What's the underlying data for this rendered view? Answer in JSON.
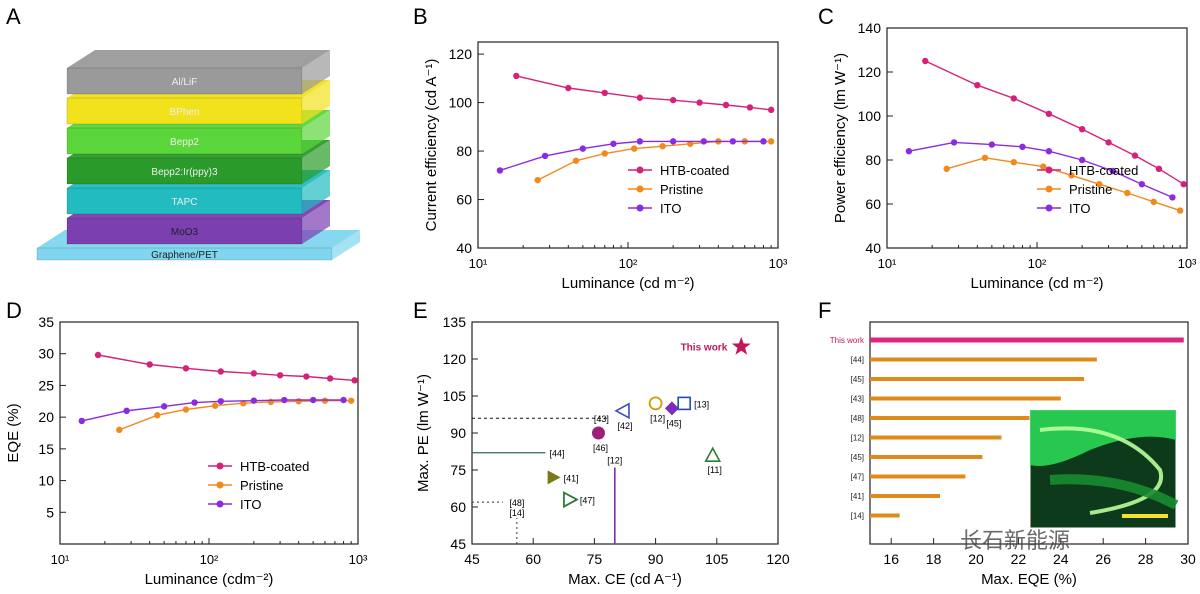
{
  "panels": {
    "A": {
      "label": "A",
      "layers": [
        "Al/LiF",
        "BPhen",
        "Bepp2",
        "Bepp2:Ir(ppy)3",
        "TAPC",
        "MoO3",
        "Graphene/PET"
      ],
      "colors": [
        "#9a9a9a",
        "#f2e21c",
        "#5bd63a",
        "#2a9b2a",
        "#22bcc0",
        "#7b3fb0",
        "#7fd6ee"
      ]
    },
    "B": {
      "label": "B"
    },
    "C": {
      "label": "C"
    },
    "D": {
      "label": "D"
    },
    "E": {
      "label": "E"
    },
    "F": {
      "label": "F"
    }
  },
  "watermark": "长石新能源",
  "colors": {
    "htb": "#d6217a",
    "pristine": "#f08a1c",
    "ito": "#8a2be2"
  },
  "chart_data": [
    {
      "id": "B",
      "type": "line",
      "xlabel": "Luminance (cd m⁻²)",
      "ylabel": "Current efficiency (cd A⁻¹)",
      "xscale": "log",
      "xlim": [
        10,
        1000
      ],
      "ylim": [
        40,
        125
      ],
      "xticks": [
        "10¹",
        "10²",
        "10³"
      ],
      "yticks": [
        "40",
        "60",
        "80",
        "100",
        "120"
      ],
      "legend_position": "lower-right",
      "series": [
        {
          "name": "HTB-coated",
          "x": [
            18,
            40,
            70,
            120,
            200,
            300,
            450,
            650,
            900
          ],
          "y": [
            111,
            106,
            104,
            102,
            101,
            100,
            99,
            98,
            97
          ]
        },
        {
          "name": "Pristine",
          "x": [
            25,
            45,
            70,
            110,
            170,
            260,
            400,
            600,
            900
          ],
          "y": [
            68,
            76,
            79,
            81,
            82,
            83,
            84,
            84,
            84
          ]
        },
        {
          "name": "ITO",
          "x": [
            14,
            28,
            50,
            80,
            120,
            200,
            320,
            500,
            800
          ],
          "y": [
            72,
            78,
            81,
            83,
            84,
            84,
            84,
            84,
            84
          ]
        }
      ]
    },
    {
      "id": "C",
      "type": "line",
      "xlabel": "Luminance (cd m⁻²)",
      "ylabel": "Power efficiency (lm W⁻¹)",
      "xscale": "log",
      "xlim": [
        10,
        1000
      ],
      "ylim": [
        40,
        140
      ],
      "xticks": [
        "10¹",
        "10²",
        "10³"
      ],
      "yticks": [
        "40",
        "60",
        "80",
        "100",
        "120",
        "140"
      ],
      "legend_position": "lower-right",
      "series": [
        {
          "name": "HTB-coated",
          "x": [
            18,
            40,
            70,
            120,
            200,
            300,
            450,
            650,
            950
          ],
          "y": [
            125,
            114,
            108,
            101,
            94,
            88,
            82,
            76,
            69
          ]
        },
        {
          "name": "Pristine",
          "x": [
            25,
            45,
            70,
            110,
            170,
            260,
            400,
            600,
            900
          ],
          "y": [
            76,
            81,
            79,
            77,
            73,
            69,
            65,
            61,
            57
          ]
        },
        {
          "name": "ITO",
          "x": [
            14,
            28,
            50,
            80,
            120,
            200,
            320,
            500,
            800
          ],
          "y": [
            84,
            88,
            87,
            86,
            84,
            80,
            75,
            69,
            63
          ]
        }
      ]
    },
    {
      "id": "D",
      "type": "line",
      "xlabel": "Luminance (cdm⁻²)",
      "ylabel": "EQE (%)",
      "xscale": "log",
      "xlim": [
        10,
        1000
      ],
      "ylim": [
        0,
        35
      ],
      "xticks": [
        "10¹",
        "10²",
        "10³"
      ],
      "yticks": [
        "5",
        "10",
        "15",
        "20",
        "25",
        "30",
        "35"
      ],
      "legend_position": "lower-right",
      "series": [
        {
          "name": "HTB-coated",
          "x": [
            18,
            40,
            70,
            120,
            200,
            300,
            450,
            650,
            950
          ],
          "y": [
            29.8,
            28.3,
            27.7,
            27.2,
            26.9,
            26.6,
            26.4,
            26.1,
            25.8
          ]
        },
        {
          "name": "Pristine",
          "x": [
            25,
            45,
            70,
            110,
            170,
            260,
            400,
            600,
            900
          ],
          "y": [
            18,
            20.3,
            21.2,
            21.8,
            22.2,
            22.4,
            22.5,
            22.6,
            22.6
          ]
        },
        {
          "name": "ITO",
          "x": [
            14,
            28,
            50,
            80,
            120,
            200,
            320,
            500,
            800
          ],
          "y": [
            19.4,
            21,
            21.7,
            22.3,
            22.5,
            22.6,
            22.7,
            22.7,
            22.7
          ]
        }
      ]
    },
    {
      "id": "E",
      "type": "scatter",
      "xlabel": "Max. CE (cd A⁻¹)",
      "ylabel": "Max. PE (lm W⁻¹)",
      "xlim": [
        45,
        120
      ],
      "ylim": [
        45,
        135
      ],
      "xticks": [
        "45",
        "60",
        "75",
        "90",
        "105",
        "120"
      ],
      "yticks": [
        "45",
        "60",
        "75",
        "90",
        "105",
        "120",
        "135"
      ],
      "points": [
        {
          "label": "This work",
          "x": 111,
          "y": 125,
          "marker": "star",
          "color": "#c2185b"
        },
        {
          "label": "[13]",
          "x": 97,
          "y": 102,
          "marker": "square-open",
          "color": "#1e4db7"
        },
        {
          "label": "[12]",
          "x": 90,
          "y": 102,
          "marker": "circle-open",
          "color": "#c8a000"
        },
        {
          "label": "[45]",
          "x": 94,
          "y": 100,
          "marker": "diamond",
          "color": "#7b2cbf"
        },
        {
          "label": "[43]",
          "x": 81,
          "y": 96,
          "marker": "",
          "color": "#111111"
        },
        {
          "label": "[42]",
          "x": 82,
          "y": 99,
          "marker": "triangle-left-open",
          "color": "#3d4db7"
        },
        {
          "label": "[46]",
          "x": 76,
          "y": 90,
          "marker": "circle-half",
          "color": "#9c1f7a"
        },
        {
          "label": "[11]",
          "x": 104,
          "y": 81,
          "marker": "triangle-up-open",
          "color": "#2e7d32"
        },
        {
          "label": "[44]",
          "x": 45,
          "y": 82,
          "marker": "",
          "color": "#2f6b4f"
        },
        {
          "label": "[12]",
          "x": 80,
          "y": 76,
          "marker": "",
          "color": "#7b2cbf"
        },
        {
          "label": "[41]",
          "x": 65,
          "y": 72,
          "marker": "triangle-right",
          "color": "#7a7a1a"
        },
        {
          "label": "[47]",
          "x": 69,
          "y": 63,
          "marker": "triangle-right-open",
          "color": "#2e7d32"
        },
        {
          "label": "[48]",
          "x": 56,
          "y": 62,
          "marker": "",
          "color": "#333333"
        },
        {
          "label": "[14]",
          "x": 56,
          "y": 58,
          "marker": "",
          "color": "#333333"
        }
      ]
    },
    {
      "id": "F",
      "type": "bar",
      "orientation": "horizontal",
      "xlabel": "Max. EQE (%)",
      "ylabel": "",
      "xlim": [
        15,
        30
      ],
      "xticks": [
        "16",
        "18",
        "20",
        "22",
        "24",
        "26",
        "28",
        "30"
      ],
      "categories": [
        "This work",
        "[44]",
        "[45]",
        "[43]",
        "[48]",
        "[12]",
        "[45]",
        "[47]",
        "[41]",
        "[14]"
      ],
      "values": [
        29.8,
        25.7,
        25.1,
        24.0,
        23.8,
        21.2,
        20.3,
        19.5,
        18.3,
        16.4
      ],
      "colors": [
        "#e0247f",
        "#e08a1a",
        "#e08a1a",
        "#e08a1a",
        "#e08a1a",
        "#e08a1a",
        "#e08a1a",
        "#e08a1a",
        "#e08a1a",
        "#e08a1a"
      ]
    }
  ]
}
